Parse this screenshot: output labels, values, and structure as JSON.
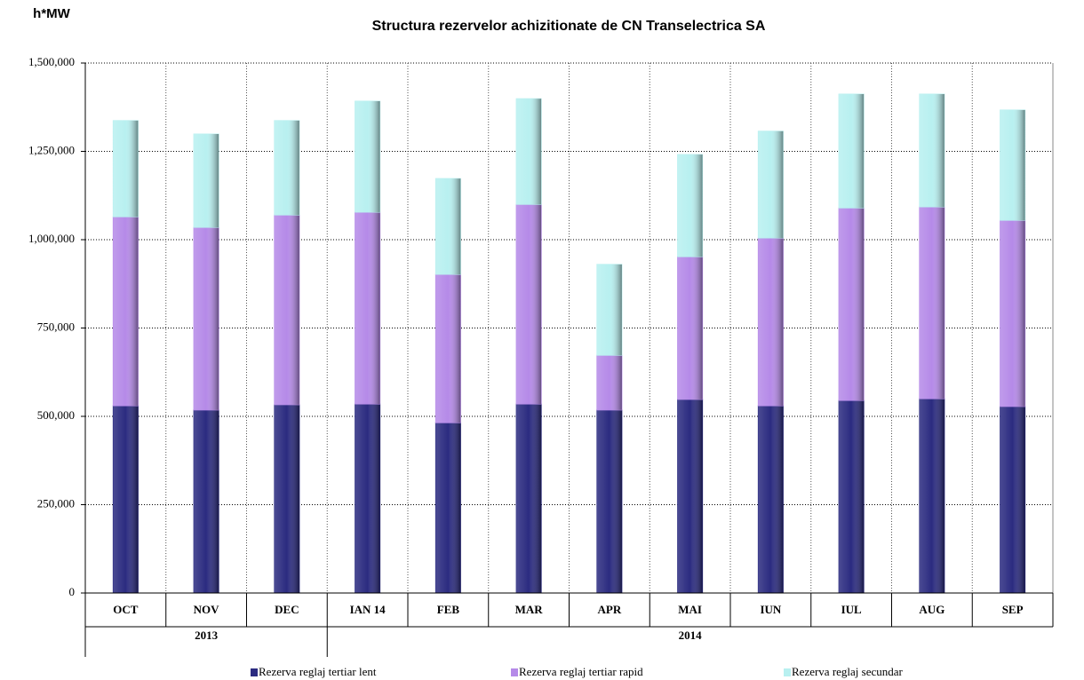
{
  "chart_data": {
    "type": "stacked_bar",
    "title": "Structura rezervelor achizitionate de CN Transelectrica SA",
    "y_label": "h*MW",
    "categories": [
      "OCT",
      "NOV",
      "DEC",
      "IAN 14",
      "FEB",
      "MAR",
      "APR",
      "MAI",
      "IUN",
      "IUL",
      "AUG",
      "SEP"
    ],
    "x_groups": [
      {
        "label": "2013",
        "size": 3
      },
      {
        "label": "2014",
        "size": 9
      }
    ],
    "series": [
      {
        "name": "Rezerva reglaj tertiar lent",
        "color": "#2b2b80",
        "values": [
          530000,
          518000,
          533000,
          535000,
          482000,
          535000,
          518000,
          548000,
          530000,
          545000,
          550000,
          528000
        ]
      },
      {
        "name": "Rezerva reglaj tertiar rapid",
        "color": "#b58ae8",
        "values": [
          535000,
          517000,
          537000,
          543000,
          420000,
          565000,
          155000,
          404000,
          475000,
          545000,
          543000,
          527000
        ]
      },
      {
        "name": "Rezerva reglaj secundar",
        "color": "#b8f0f0",
        "values": [
          272000,
          264000,
          267000,
          314000,
          271000,
          299000,
          257000,
          289000,
          302000,
          322000,
          319000,
          312000
        ]
      }
    ],
    "ylim": [
      0,
      1500000
    ],
    "yticks": [
      0,
      {
        "value": 250000,
        "label": "250,000"
      },
      {
        "value": 500000,
        "label": "500,000"
      },
      {
        "value": 750000,
        "label": "750,000"
      },
      {
        "value": 1000000,
        "label": "1,000,000"
      },
      {
        "value": 1250000,
        "label": "1,250,000"
      },
      {
        "value": 1500000,
        "label": "1,500,000"
      }
    ],
    "grid": true
  }
}
